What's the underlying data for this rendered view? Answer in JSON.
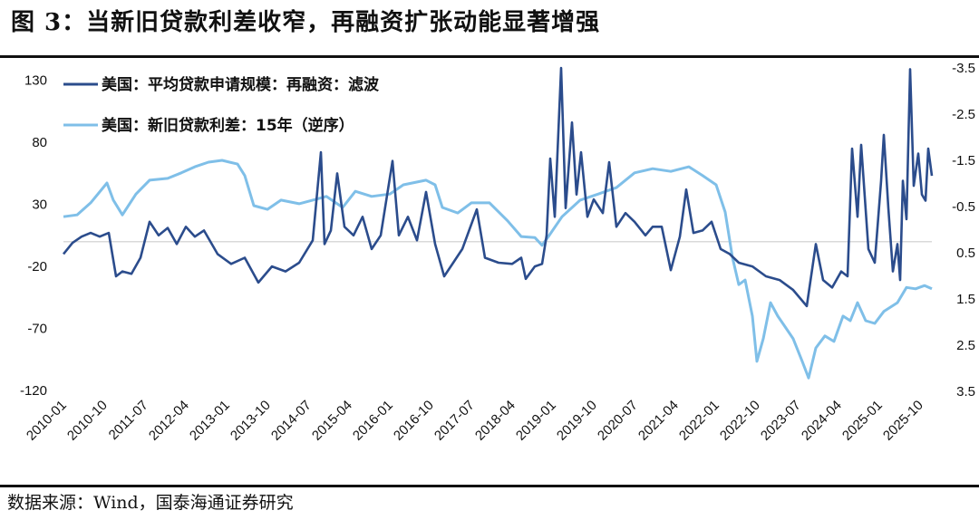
{
  "title": "图 3：当新旧贷款利差收窄，再融资扩张动能显著增强",
  "source": "数据来源：Wind，国泰海通证券研究",
  "chart_data": {
    "type": "line",
    "x_unit": "months since 2010-01",
    "xlim": [
      0,
      191.6
    ],
    "x_tick_labels": [
      "2010-01",
      "2010-10",
      "2011-07",
      "2012-04",
      "2013-01",
      "2013-10",
      "2014-07",
      "2015-04",
      "2016-01",
      "2016-10",
      "2017-07",
      "2018-04",
      "2019-01",
      "2019-10",
      "2020-07",
      "2021-04",
      "2022-01",
      "2022-10",
      "2023-07",
      "2024-04",
      "2025-01",
      "2025-10"
    ],
    "left_axis": {
      "ylim": [
        -120,
        140
      ],
      "ticks": [
        "130",
        "80",
        "30",
        "-20",
        "-70",
        "-120"
      ],
      "tick_values": [
        130,
        80,
        30,
        -20,
        -70,
        -120
      ]
    },
    "right_axis": {
      "ylim": [
        -3.5,
        3.5
      ],
      "inverted": true,
      "ticks": [
        "-3.5",
        "-2.5",
        "-1.5",
        "-0.5",
        "0.5",
        "1.5",
        "2.5",
        "3.5"
      ],
      "tick_values": [
        -3.5,
        -2.5,
        -1.5,
        -0.5,
        0.5,
        1.5,
        2.5,
        3.5
      ]
    },
    "zero_line": true,
    "legend_position": "top-left",
    "series": [
      {
        "name": "美国：平均贷款申请规模：再融资：滤波",
        "axis": "left",
        "color": "#2b4c8c",
        "points": [
          [
            0,
            -10
          ],
          [
            2,
            -1
          ],
          [
            4,
            4
          ],
          [
            6,
            7
          ],
          [
            8,
            4
          ],
          [
            10,
            7
          ],
          [
            11.6,
            -28
          ],
          [
            13,
            -24
          ],
          [
            15,
            -26
          ],
          [
            17,
            -13
          ],
          [
            19,
            16
          ],
          [
            21,
            5
          ],
          [
            23,
            11
          ],
          [
            25,
            -2
          ],
          [
            27,
            12
          ],
          [
            29,
            4
          ],
          [
            31,
            9
          ],
          [
            34,
            -10
          ],
          [
            37,
            -18
          ],
          [
            40,
            -13
          ],
          [
            43,
            -33
          ],
          [
            46,
            -20
          ],
          [
            49,
            -24
          ],
          [
            52,
            -17
          ],
          [
            55,
            1
          ],
          [
            56.8,
            72
          ],
          [
            57.6,
            -2
          ],
          [
            59,
            9
          ],
          [
            60.4,
            55
          ],
          [
            62,
            12
          ],
          [
            64,
            5
          ],
          [
            66,
            20
          ],
          [
            68,
            -6
          ],
          [
            70,
            5
          ],
          [
            72.6,
            65
          ],
          [
            74,
            5
          ],
          [
            76,
            20
          ],
          [
            78,
            1
          ],
          [
            80,
            40
          ],
          [
            82,
            -2
          ],
          [
            84,
            -28
          ],
          [
            86,
            -17
          ],
          [
            88,
            -6
          ],
          [
            91.2,
            26
          ],
          [
            93,
            -13
          ],
          [
            96,
            -17
          ],
          [
            99,
            -18
          ],
          [
            101,
            -13
          ],
          [
            102,
            -30
          ],
          [
            104,
            -20
          ],
          [
            105.6,
            -18
          ],
          [
            106.6,
            5
          ],
          [
            107.4,
            67
          ],
          [
            108.4,
            20
          ],
          [
            109.8,
            140
          ],
          [
            110.8,
            27
          ],
          [
            112.2,
            96
          ],
          [
            113.2,
            38
          ],
          [
            114.2,
            72
          ],
          [
            115.6,
            20
          ],
          [
            117,
            34
          ],
          [
            119,
            23
          ],
          [
            120.4,
            64
          ],
          [
            122,
            12
          ],
          [
            124,
            23
          ],
          [
            126,
            16
          ],
          [
            128.4,
            5
          ],
          [
            130,
            12
          ],
          [
            132,
            12
          ],
          [
            134,
            -23
          ],
          [
            136,
            4
          ],
          [
            137.4,
            42
          ],
          [
            139,
            7
          ],
          [
            141,
            9
          ],
          [
            143,
            16
          ],
          [
            145,
            -6
          ],
          [
            147,
            -10
          ],
          [
            149,
            -17
          ],
          [
            152,
            -20
          ],
          [
            155,
            -28
          ],
          [
            158,
            -31
          ],
          [
            161,
            -39
          ],
          [
            164,
            -52
          ],
          [
            166,
            -2
          ],
          [
            167.6,
            -31
          ],
          [
            169.6,
            -37
          ],
          [
            171.6,
            -24
          ],
          [
            173,
            -28
          ],
          [
            174,
            75
          ],
          [
            175.2,
            20
          ],
          [
            176,
            78
          ],
          [
            177.6,
            -6
          ],
          [
            179,
            -17
          ],
          [
            180.4,
            49
          ],
          [
            181,
            86
          ],
          [
            182,
            27
          ],
          [
            183,
            -24
          ],
          [
            184,
            -2
          ],
          [
            184.6,
            -31
          ],
          [
            185.2,
            49
          ],
          [
            186,
            18
          ],
          [
            186.8,
            139
          ],
          [
            187.6,
            45
          ],
          [
            188.6,
            71
          ],
          [
            189.4,
            38
          ],
          [
            190.2,
            33
          ],
          [
            190.8,
            75
          ],
          [
            191.6,
            53
          ]
        ]
      },
      {
        "name": "美国：新旧贷款利差：15年（逆序）",
        "axis": "right",
        "color": "#7fbfe8",
        "points": [
          [
            0,
            -0.28
          ],
          [
            3,
            -0.32
          ],
          [
            6,
            -0.58
          ],
          [
            9.6,
            -1.01
          ],
          [
            11,
            -0.64
          ],
          [
            13,
            -0.32
          ],
          [
            16,
            -0.77
          ],
          [
            19,
            -1.07
          ],
          [
            23,
            -1.11
          ],
          [
            26,
            -1.23
          ],
          [
            29,
            -1.36
          ],
          [
            32,
            -1.46
          ],
          [
            35,
            -1.5
          ],
          [
            38.4,
            -1.42
          ],
          [
            40,
            -1.17
          ],
          [
            42,
            -0.52
          ],
          [
            45,
            -0.44
          ],
          [
            48,
            -0.64
          ],
          [
            52,
            -0.56
          ],
          [
            55,
            -0.64
          ],
          [
            58,
            -0.72
          ],
          [
            61.6,
            -0.48
          ],
          [
            64.4,
            -0.83
          ],
          [
            68,
            -0.72
          ],
          [
            72,
            -0.77
          ],
          [
            75,
            -0.97
          ],
          [
            80,
            -1.07
          ],
          [
            82,
            -0.97
          ],
          [
            83.6,
            -0.48
          ],
          [
            87,
            -0.36
          ],
          [
            90,
            -0.58
          ],
          [
            94,
            -0.58
          ],
          [
            98,
            -0.19
          ],
          [
            101,
            0.15
          ],
          [
            104,
            0.17
          ],
          [
            105.6,
            0.34
          ],
          [
            107,
            0.15
          ],
          [
            110,
            -0.28
          ],
          [
            114,
            -0.64
          ],
          [
            118,
            -0.77
          ],
          [
            122,
            -0.91
          ],
          [
            126,
            -1.23
          ],
          [
            130,
            -1.32
          ],
          [
            134,
            -1.26
          ],
          [
            138,
            -1.36
          ],
          [
            141,
            -1.17
          ],
          [
            144,
            -0.97
          ],
          [
            146,
            -0.38
          ],
          [
            147.6,
            0.6
          ],
          [
            149,
            1.19
          ],
          [
            150.4,
            1.09
          ],
          [
            152,
            1.87
          ],
          [
            153,
            2.85
          ],
          [
            154.4,
            2.36
          ],
          [
            156,
            1.58
          ],
          [
            157.6,
            1.87
          ],
          [
            159,
            2.07
          ],
          [
            161,
            2.36
          ],
          [
            163,
            2.85
          ],
          [
            164.4,
            3.21
          ],
          [
            166,
            2.56
          ],
          [
            168,
            2.3
          ],
          [
            170,
            2.42
          ],
          [
            172,
            1.87
          ],
          [
            173.6,
            1.97
          ],
          [
            175.2,
            1.58
          ],
          [
            177,
            1.97
          ],
          [
            179,
            2.03
          ],
          [
            181,
            1.77
          ],
          [
            184,
            1.58
          ],
          [
            186,
            1.25
          ],
          [
            188,
            1.28
          ],
          [
            190,
            1.21
          ],
          [
            191.6,
            1.28
          ]
        ]
      }
    ]
  }
}
